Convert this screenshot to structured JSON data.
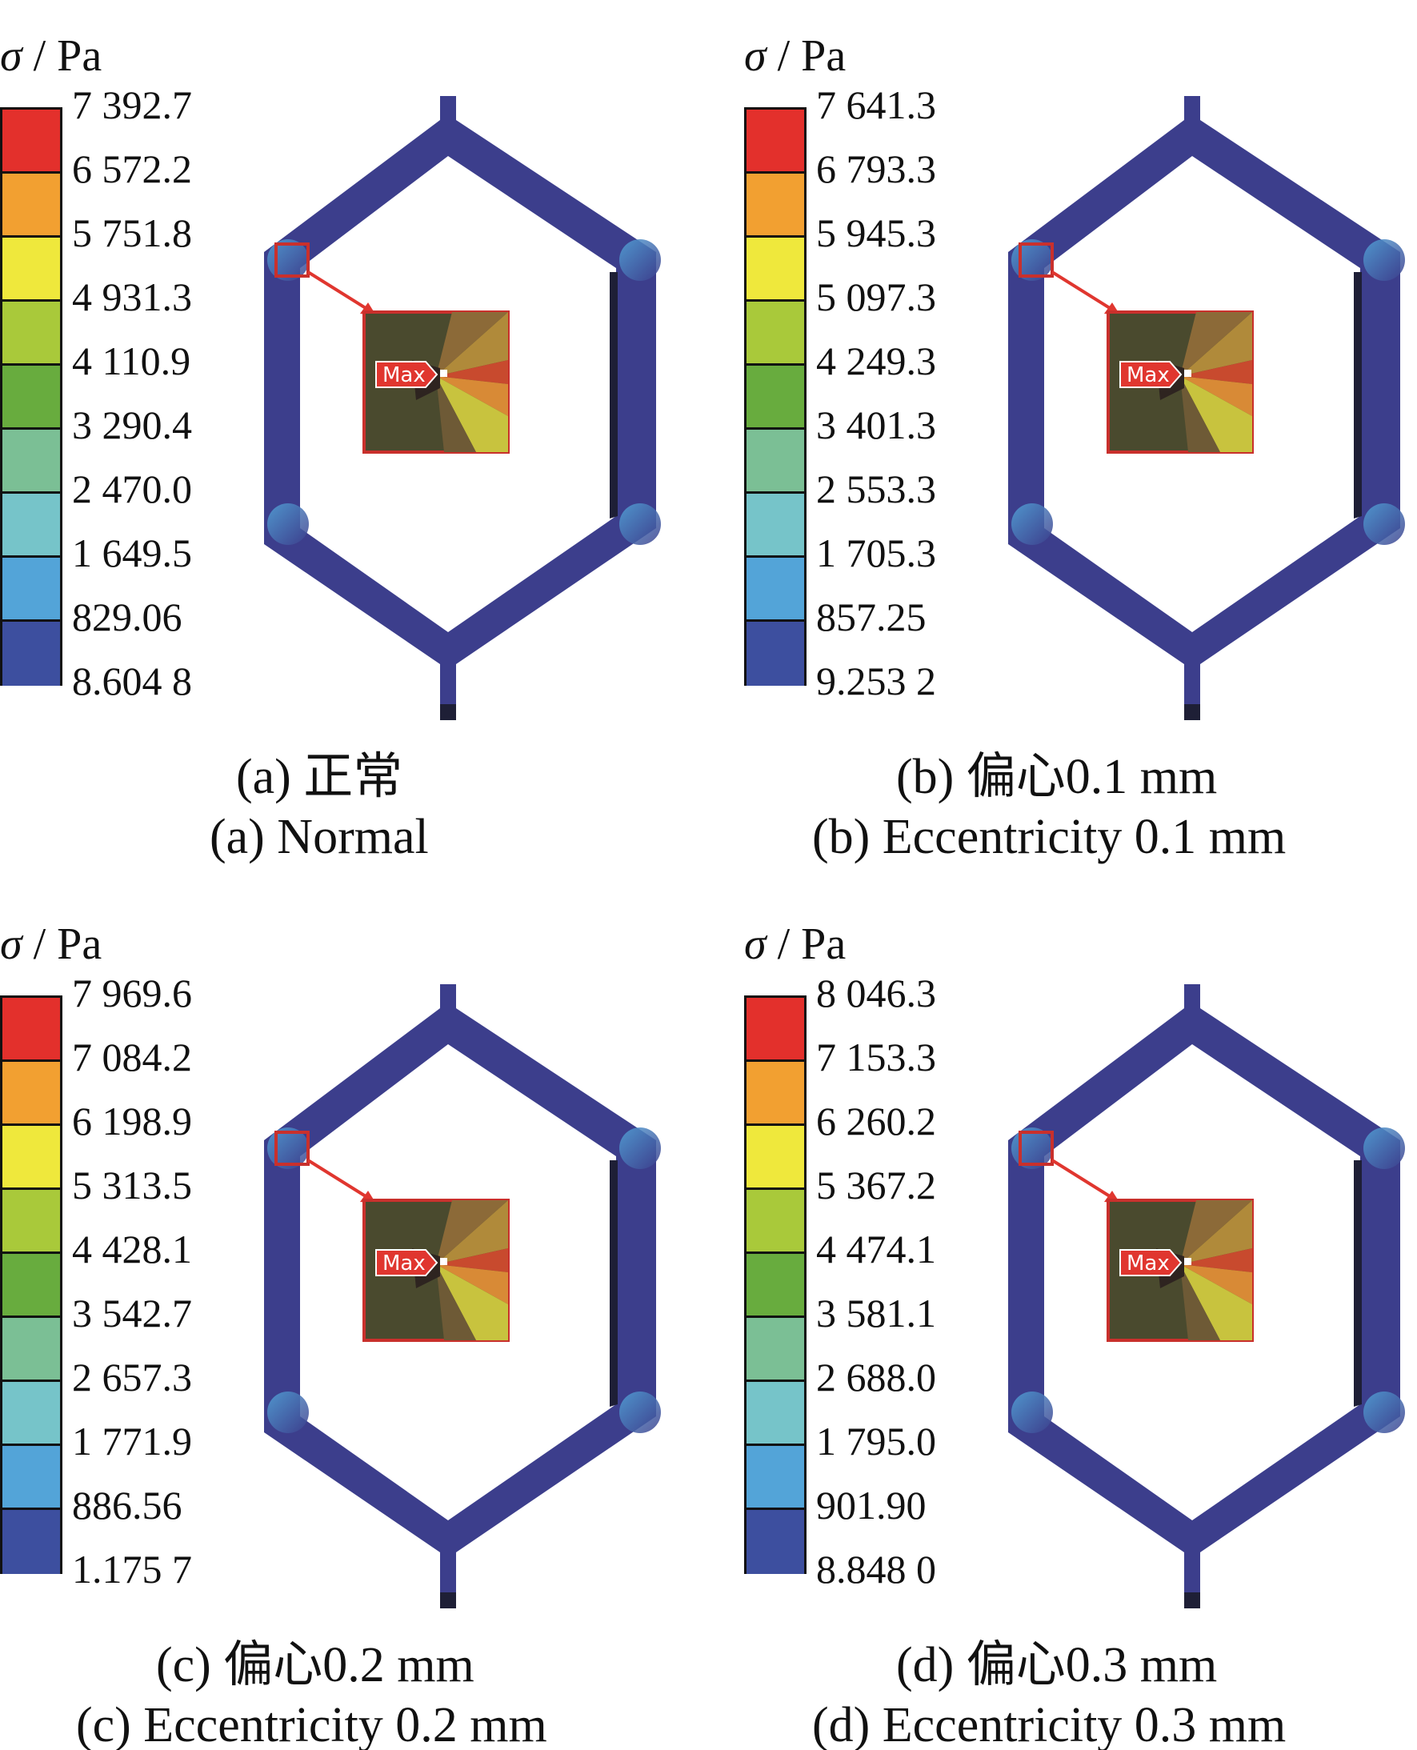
{
  "panels": [
    {
      "id": "a",
      "unit_symbol": "σ",
      "unit_text": " / Pa",
      "legend_values": [
        "7 392.7",
        "6 572.2",
        "5 751.8",
        "4 931.3",
        "4 110.9",
        "3 290.4",
        "2 470.0",
        "1 649.5",
        "829.06",
        "8.604 8"
      ],
      "max_label": "Max",
      "caption_cn": "(a)  正常",
      "caption_en": "(a)  Normal"
    },
    {
      "id": "b",
      "unit_symbol": "σ",
      "unit_text": " / Pa",
      "legend_values": [
        "7 641.3",
        "6 793.3",
        "5 945.3",
        "5 097.3",
        "4 249.3",
        "3 401.3",
        "2 553.3",
        "1 705.3",
        "857.25",
        "9.253 2"
      ],
      "max_label": "Max",
      "caption_cn": "(b)  偏心0.1 mm",
      "caption_en": "(b)  Eccentricity 0.1 mm"
    },
    {
      "id": "c",
      "unit_symbol": "σ",
      "unit_text": " / Pa",
      "legend_values": [
        "7 969.6",
        "7 084.2",
        "6 198.9",
        "5 313.5",
        "4 428.1",
        "3 542.7",
        "2 657.3",
        "1 771.9",
        "886.56",
        "1.175 7"
      ],
      "max_label": "Max",
      "caption_cn": "(c)  偏心0.2 mm",
      "caption_en": "(c)  Eccentricity 0.2 mm"
    },
    {
      "id": "d",
      "unit_symbol": "σ",
      "unit_text": " / Pa",
      "legend_values": [
        "8 046.3",
        "7 153.3",
        "6 260.2",
        "5 367.2",
        "4 474.1",
        "3 581.1",
        "2 688.0",
        "1 795.0",
        "901.90",
        "8.848 0"
      ],
      "max_label": "Max",
      "caption_cn": "(d)  偏心0.3 mm",
      "caption_en": "(d)  Eccentricity 0.3 mm"
    }
  ],
  "legend_colors": [
    "#e3302c",
    "#f2a031",
    "#efe83c",
    "#a9c93a",
    "#68ac3e",
    "#7bbf95",
    "#76c4c9",
    "#53a4d8",
    "#3d4f9f"
  ],
  "colors": {
    "frame": "#3c3e8c",
    "frame_shadow": "#1e1f36",
    "highlight_box": "#c9302c",
    "arrow": "#e0362f"
  }
}
